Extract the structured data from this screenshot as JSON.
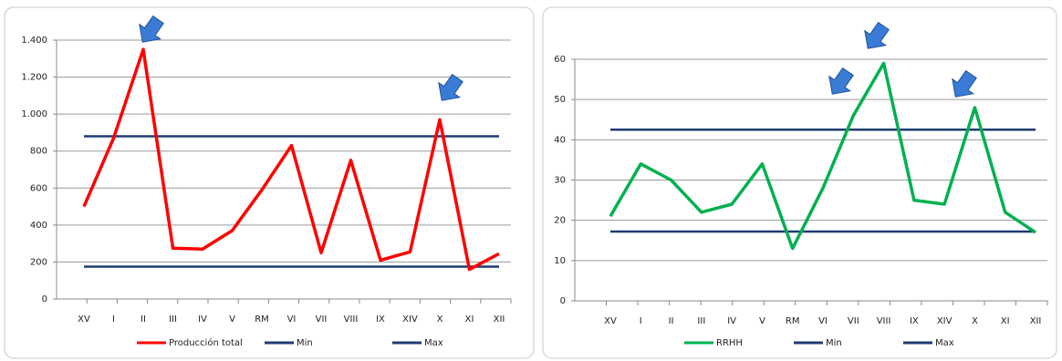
{
  "chart_data": [
    {
      "type": "line",
      "categories": [
        "XV",
        "I",
        "II",
        "III",
        "IV",
        "V",
        "RM",
        "VI",
        "VII",
        "VIII",
        "IX",
        "XIV",
        "X",
        "XI",
        "XII"
      ],
      "series": [
        {
          "name": "Producción total",
          "color": "#ff0000",
          "values": [
            500,
            870,
            1350,
            275,
            270,
            370,
            590,
            830,
            250,
            750,
            210,
            255,
            970,
            160,
            245
          ]
        },
        {
          "name": "Min",
          "color": "#1f3b70",
          "values": [
            175,
            175,
            175,
            175,
            175,
            175,
            175,
            175,
            175,
            175,
            175,
            175,
            175,
            175,
            175
          ]
        },
        {
          "name": "Max",
          "color": "#1f3b70",
          "values": [
            880,
            880,
            880,
            880,
            880,
            880,
            880,
            880,
            880,
            880,
            880,
            880,
            880,
            880,
            880
          ]
        }
      ],
      "ylim": [
        0,
        1400
      ],
      "yticks": [
        0,
        200,
        400,
        600,
        800,
        {
          "value": 1000,
          "label": "1.000"
        },
        {
          "value": 1200,
          "label": "1.200"
        },
        {
          "value": 1400,
          "label": "1.400"
        }
      ],
      "grid": true,
      "legend": "bottom"
    },
    {
      "type": "line",
      "categories": [
        "XV",
        "I",
        "II",
        "III",
        "IV",
        "V",
        "RM",
        "VI",
        "VII",
        "VIII",
        "IX",
        "XIV",
        "X",
        "XI",
        "XII"
      ],
      "series": [
        {
          "name": "RRHH",
          "color": "#00b050",
          "values": [
            21,
            34,
            30,
            22,
            24,
            34,
            13,
            28,
            46,
            59,
            25,
            24,
            48,
            22,
            17
          ]
        },
        {
          "name": "Min",
          "color": "#1f3b70",
          "values": [
            17.2,
            17.2,
            17.2,
            17.2,
            17.2,
            17.2,
            17.2,
            17.2,
            17.2,
            17.2,
            17.2,
            17.2,
            17.2,
            17.2,
            17.2
          ]
        },
        {
          "name": "Max",
          "color": "#1f3b70",
          "values": [
            42.5,
            42.5,
            42.5,
            42.5,
            42.5,
            42.5,
            42.5,
            42.5,
            42.5,
            42.5,
            42.5,
            42.5,
            42.5,
            42.5,
            42.5
          ]
        }
      ],
      "ylim": [
        0,
        60
      ],
      "yticks": [
        0,
        10,
        20,
        30,
        40,
        50,
        60
      ],
      "grid": true,
      "legend": "bottom"
    }
  ]
}
